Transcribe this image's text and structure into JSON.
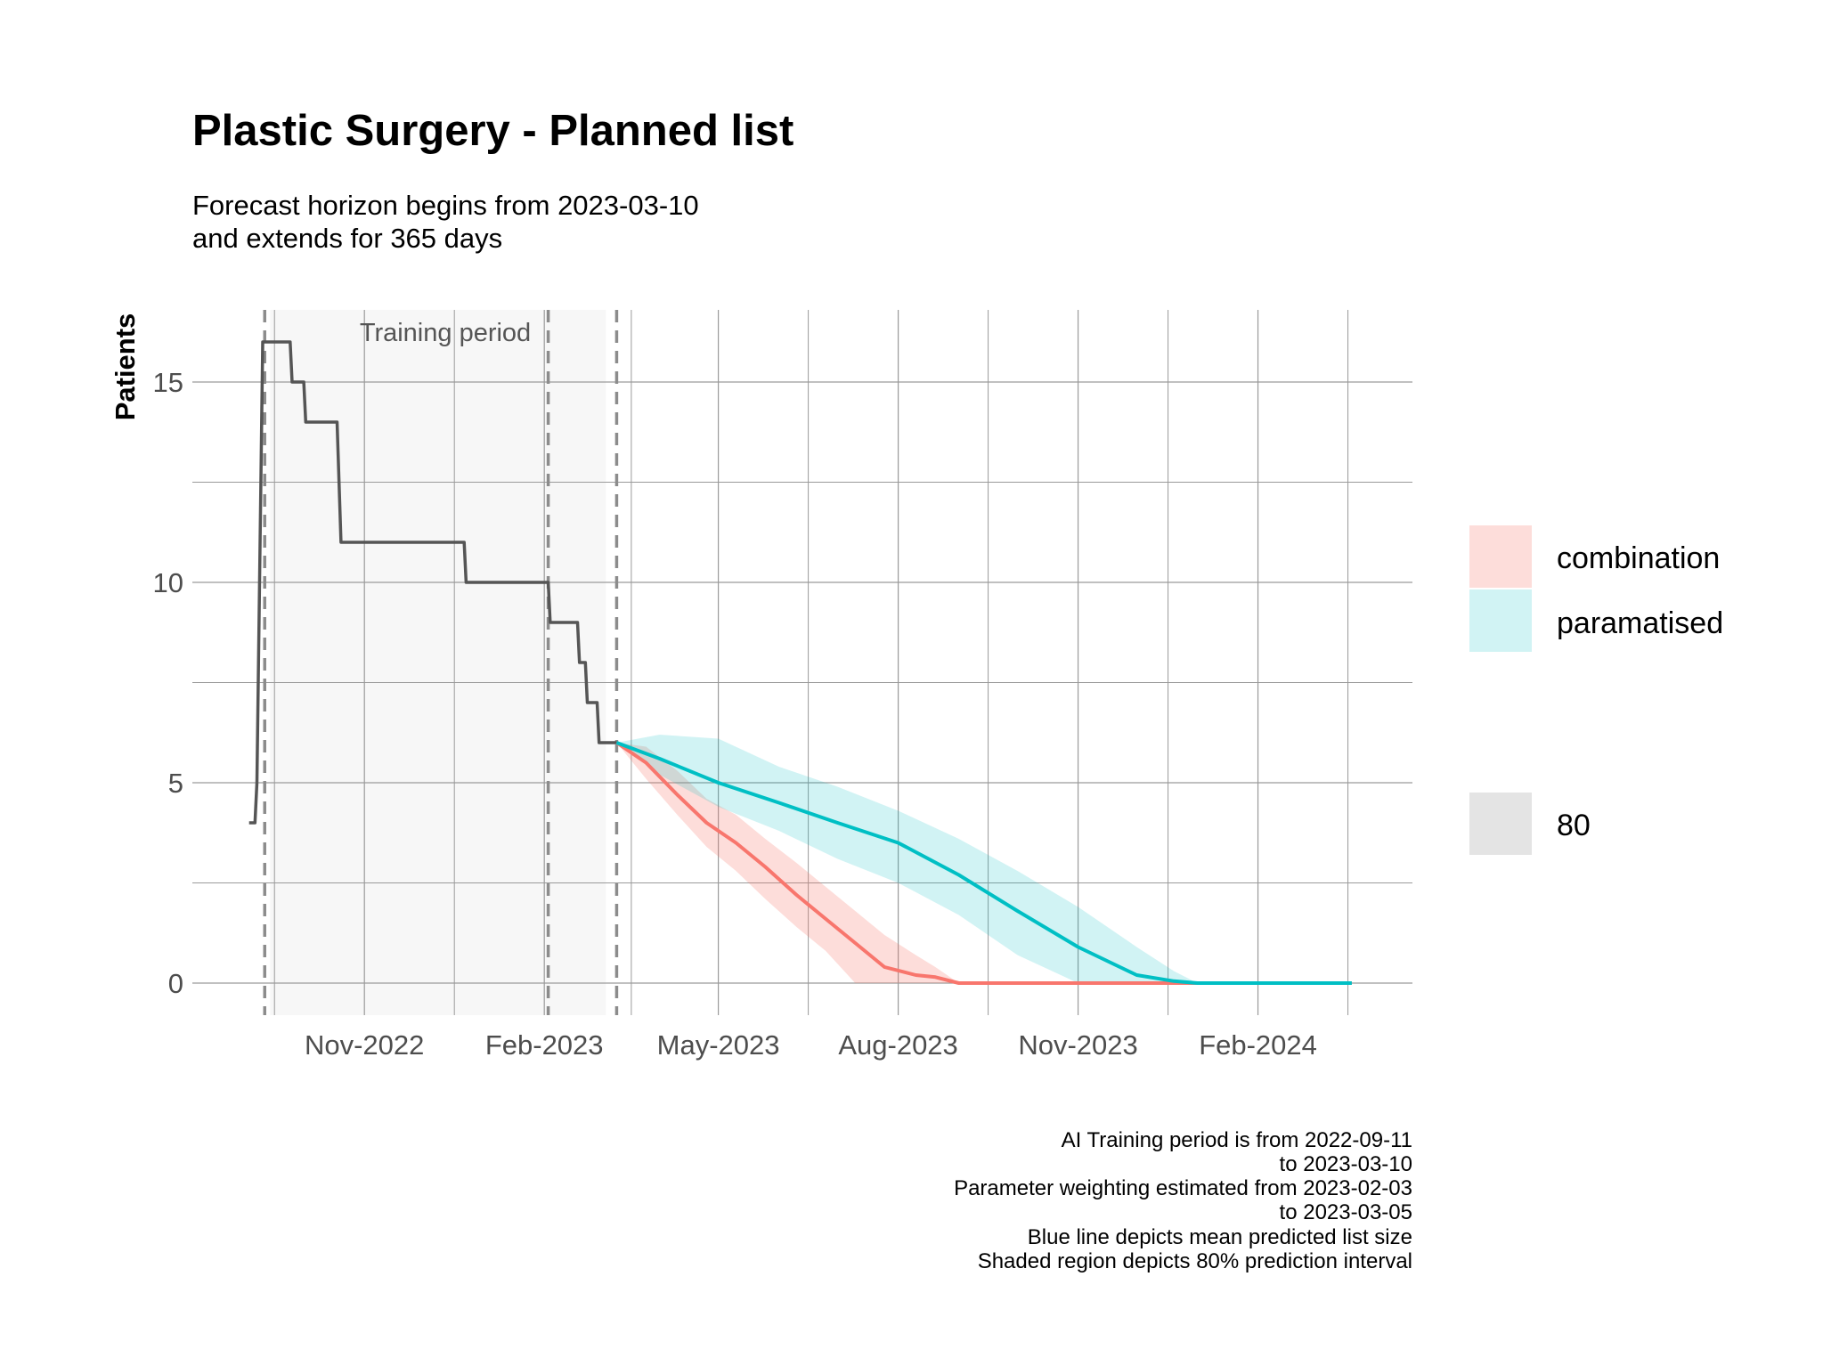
{
  "title": "Plastic Surgery - Planned list",
  "subtitle_lines": [
    "Forecast horizon begins from 2023-03-10",
    "and extends for 365 days"
  ],
  "caption_lines": [
    "AI Training period is from 2022-09-11",
    "to 2023-03-10",
    "Parameter weighting estimated from 2023-02-03",
    "to 2023-03-05",
    "Blue line depicts mean predicted list size",
    "Shaded region depicts 80% prediction interval"
  ],
  "colors": {
    "combination": "#F8766D",
    "paramatised": "#00BFC4",
    "observed": "#555555",
    "training_band": "#F7F7F7",
    "grid": "#9a9a9a"
  },
  "chart_data": {
    "type": "line",
    "title": "Plastic Surgery - Planned list",
    "xlabel": "",
    "ylabel": "Patients",
    "xlim": [
      "2022-08-05",
      "2024-04-20"
    ],
    "ylim": [
      -0.8,
      16.8
    ],
    "x_ticks": [
      {
        "date": "2022-11-01",
        "label": "Nov-2022"
      },
      {
        "date": "2023-02-01",
        "label": "Feb-2023"
      },
      {
        "date": "2023-05-01",
        "label": "May-2023"
      },
      {
        "date": "2023-08-01",
        "label": "Aug-2023"
      },
      {
        "date": "2023-11-01",
        "label": "Nov-2023"
      },
      {
        "date": "2024-02-01",
        "label": "Feb-2024"
      }
    ],
    "y_ticks": [
      0,
      5,
      10,
      15
    ],
    "grid": true,
    "training_period": {
      "start": "2022-09-11",
      "end": "2023-03-10",
      "label": "Training period"
    },
    "dashed_vlines": [
      "2022-09-11",
      "2023-02-03",
      "2023-03-10"
    ],
    "observed": {
      "x": [
        "2022-09-03",
        "2022-09-06",
        "2022-09-07",
        "2022-09-10",
        "2022-09-12",
        "2022-09-24",
        "2022-09-25",
        "2022-10-01",
        "2022-10-02",
        "2022-10-18",
        "2022-10-20",
        "2022-12-22",
        "2022-12-23",
        "2023-02-03",
        "2023-02-04",
        "2023-02-18",
        "2023-02-19",
        "2023-02-22",
        "2023-02-23",
        "2023-02-28",
        "2023-03-01",
        "2023-03-10"
      ],
      "y": [
        4,
        4,
        5,
        16,
        16,
        16,
        15,
        15,
        14,
        14,
        11,
        11,
        10,
        10,
        9,
        9,
        8,
        8,
        7,
        7,
        6,
        6
      ]
    },
    "series": [
      {
        "name": "combination",
        "x": [
          "2023-03-10",
          "2023-03-25",
          "2023-04-10",
          "2023-04-25",
          "2023-05-10",
          "2023-05-25",
          "2023-06-10",
          "2023-06-25",
          "2023-07-10",
          "2023-07-25",
          "2023-08-10",
          "2023-08-20",
          "2023-09-01",
          "2023-10-01",
          "2023-11-01",
          "2023-12-01",
          "2024-01-01",
          "2024-03-20"
        ],
        "values": [
          6.0,
          5.5,
          4.7,
          4.0,
          3.5,
          2.9,
          2.2,
          1.6,
          1.0,
          0.4,
          0.2,
          0.15,
          0,
          0,
          0,
          0,
          0,
          0
        ],
        "lower": [
          6.0,
          5.1,
          4.2,
          3.4,
          2.8,
          2.1,
          1.4,
          0.8,
          0,
          0,
          0,
          0,
          0,
          0,
          0,
          0,
          0,
          0
        ],
        "upper": [
          6.0,
          5.9,
          5.3,
          4.6,
          4.2,
          3.6,
          3.0,
          2.4,
          1.8,
          1.2,
          0.7,
          0.4,
          0,
          0,
          0,
          0,
          0,
          0
        ]
      },
      {
        "name": "paramatised",
        "x": [
          "2023-03-10",
          "2023-04-01",
          "2023-05-01",
          "2023-06-01",
          "2023-07-01",
          "2023-08-01",
          "2023-09-01",
          "2023-10-01",
          "2023-11-01",
          "2023-12-01",
          "2023-12-20",
          "2024-01-01",
          "2024-03-20"
        ],
        "values": [
          6.0,
          5.6,
          5.0,
          4.5,
          4.0,
          3.5,
          2.7,
          1.8,
          0.9,
          0.2,
          0.05,
          0,
          0
        ],
        "lower": [
          6.0,
          5.2,
          4.4,
          3.8,
          3.1,
          2.5,
          1.7,
          0.7,
          0,
          0,
          0,
          0,
          0
        ],
        "upper": [
          6.0,
          6.2,
          6.1,
          5.4,
          4.9,
          4.3,
          3.6,
          2.8,
          1.9,
          0.9,
          0.3,
          0,
          0
        ]
      }
    ],
    "legend": {
      "placement": "right",
      "entries": [
        "combination",
        "paramatised"
      ],
      "interval_entry": "80"
    }
  }
}
